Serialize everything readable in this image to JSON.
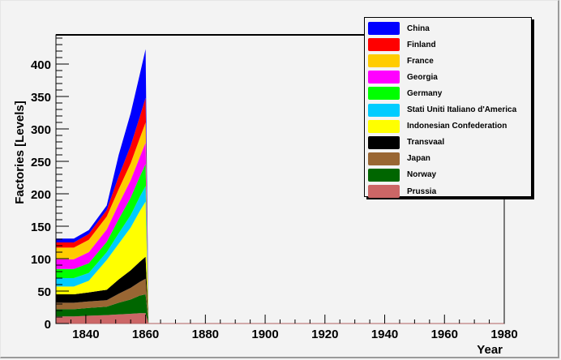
{
  "chart_data": {
    "type": "area",
    "stacked": true,
    "title": "",
    "xlabel": "Year",
    "ylabel": "Factories [Levels]",
    "xlim": [
      1830,
      1980
    ],
    "ylim": [
      0,
      445
    ],
    "x_ticks": [
      1840,
      1860,
      1880,
      1900,
      1920,
      1940,
      1960,
      1980
    ],
    "y_ticks": [
      0,
      50,
      100,
      150,
      200,
      250,
      300,
      350,
      400
    ],
    "grid": false,
    "legend_position": "top-right",
    "x": [
      1830,
      1836,
      1841,
      1847,
      1851,
      1855,
      1858,
      1860,
      1861
    ],
    "series": [
      {
        "name": "Prussia",
        "color": "#cc6666",
        "values": [
          11,
          11,
          12,
          13,
          14,
          15,
          16,
          16,
          0
        ]
      },
      {
        "name": "Norway",
        "color": "#006600",
        "values": [
          11,
          11,
          12,
          13,
          18,
          22,
          27,
          29,
          0
        ]
      },
      {
        "name": "Japan",
        "color": "#996633",
        "values": [
          10,
          10,
          10,
          10,
          14,
          18,
          21,
          24,
          0
        ]
      },
      {
        "name": "Transvaal",
        "color": "#000000",
        "values": [
          13,
          13,
          14,
          16,
          22,
          27,
          31,
          34,
          0
        ]
      },
      {
        "name": "Indonesian Confederation",
        "color": "#ffff00",
        "values": [
          12,
          12,
          18,
          46,
          55,
          66,
          78,
          85,
          0
        ]
      },
      {
        "name": "Stati Uniti Italiano d'America",
        "color": "#00ccff",
        "values": [
          13,
          13,
          12,
          12,
          16,
          19,
          22,
          24,
          0
        ]
      },
      {
        "name": "Germany",
        "color": "#00ff00",
        "values": [
          14,
          14,
          15,
          16,
          22,
          27,
          31,
          34,
          0
        ]
      },
      {
        "name": "Georgia",
        "color": "#ff00ff",
        "values": [
          15,
          15,
          17,
          19,
          23,
          27,
          30,
          33,
          0
        ]
      },
      {
        "name": "France",
        "color": "#ffcc00",
        "values": [
          18,
          18,
          19,
          20,
          23,
          26,
          29,
          31,
          0
        ]
      },
      {
        "name": "Finland",
        "color": "#ff0000",
        "values": [
          8,
          8,
          9,
          10,
          20,
          27,
          33,
          38,
          0
        ]
      },
      {
        "name": "China",
        "color": "#0000ff",
        "values": [
          6,
          6,
          6,
          7,
          33,
          50,
          65,
          75,
          0
        ]
      }
    ]
  },
  "legend": {
    "items": [
      {
        "label": "China",
        "color": "#0000ff"
      },
      {
        "label": "Finland",
        "color": "#ff0000"
      },
      {
        "label": "France",
        "color": "#ffcc00"
      },
      {
        "label": "Georgia",
        "color": "#ff00ff"
      },
      {
        "label": "Germany",
        "color": "#00ff00"
      },
      {
        "label": "Stati Uniti Italiano d'America",
        "color": "#00ccff"
      },
      {
        "label": "Indonesian Confederation",
        "color": "#ffff00"
      },
      {
        "label": "Transvaal",
        "color": "#000000"
      },
      {
        "label": "Japan",
        "color": "#996633"
      },
      {
        "label": "Norway",
        "color": "#006600"
      },
      {
        "label": "Prussia",
        "color": "#cc6666"
      }
    ]
  },
  "axes": {
    "x_title": "Year",
    "y_title": "Factories [Levels]"
  }
}
